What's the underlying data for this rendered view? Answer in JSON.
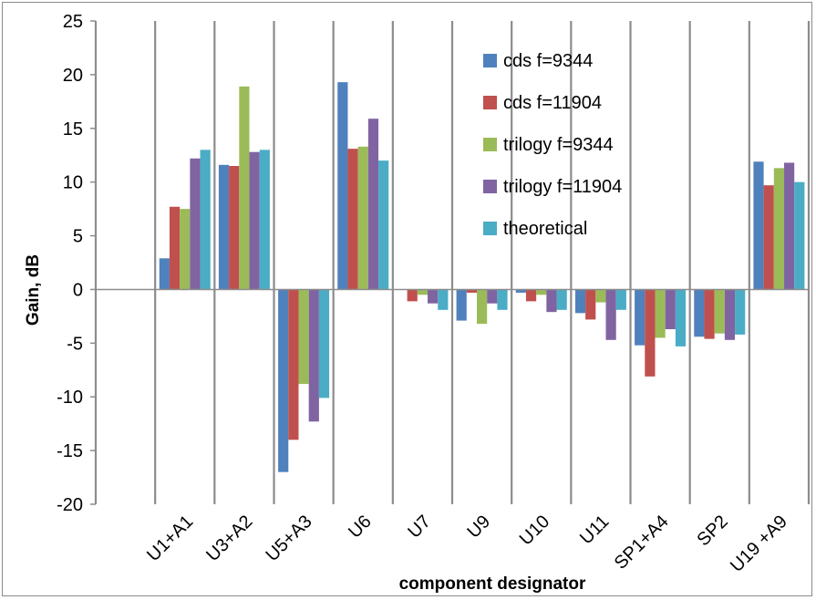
{
  "chart_data": {
    "type": "bar",
    "title": "",
    "xlabel": "component designator",
    "ylabel": "Gain, dB",
    "ylim": [
      -20,
      25
    ],
    "yticks": [
      -20,
      -15,
      -10,
      -5,
      0,
      5,
      10,
      15,
      20,
      25
    ],
    "grid": "vertical category separators",
    "legend_position": "inside, top-right",
    "categories": [
      "",
      "U1+A1",
      "U3+A2",
      "U5+A3",
      "U6",
      "U7",
      "U9",
      "U10",
      "U11",
      "SP1+A4",
      "SP2",
      "U19 +A9"
    ],
    "series": [
      {
        "name": "cds f=9344",
        "color": "#4f81bd",
        "values": [
          null,
          2.9,
          11.6,
          -17.0,
          19.3,
          0,
          -2.9,
          -0.3,
          -2.2,
          -5.2,
          -4.4,
          11.9
        ]
      },
      {
        "name": "cds f=11904",
        "color": "#c0504d",
        "values": [
          null,
          7.7,
          11.5,
          -14.0,
          13.1,
          -1.1,
          -0.3,
          -1.1,
          -2.8,
          -8.1,
          -4.6,
          9.7
        ]
      },
      {
        "name": "trilogy f=9344",
        "color": "#9bbb59",
        "values": [
          null,
          7.5,
          18.9,
          -8.8,
          13.3,
          -0.5,
          -3.2,
          -0.5,
          -1.2,
          -4.5,
          -4.1,
          11.3
        ]
      },
      {
        "name": "trilogy f=11904",
        "color": "#8064a2",
        "values": [
          null,
          12.2,
          12.8,
          -12.3,
          15.9,
          -1.3,
          -1.3,
          -2.1,
          -4.7,
          -3.7,
          -4.7,
          11.8
        ]
      },
      {
        "name": "theoretical",
        "color": "#4bacc6",
        "values": [
          null,
          13.0,
          13.0,
          -10.1,
          12.0,
          -1.9,
          -1.9,
          -1.9,
          -1.9,
          -5.3,
          -4.2,
          10.0
        ]
      }
    ]
  }
}
